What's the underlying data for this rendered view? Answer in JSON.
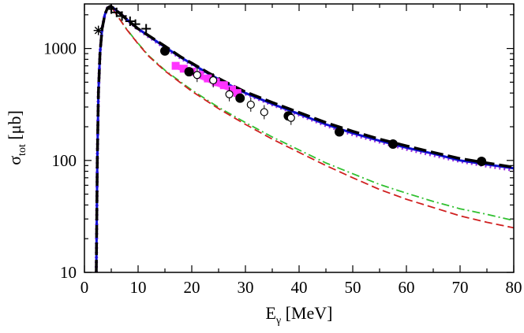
{
  "chart_data": {
    "type": "line",
    "title": "",
    "xlabel": {
      "main": "E",
      "sub": "γ",
      "unit": " [MeV]"
    },
    "ylabel": {
      "main": "σ",
      "sub": "tot",
      "unit": " [μb]"
    },
    "xlim": [
      0,
      80
    ],
    "ylim": [
      10,
      2500
    ],
    "yscale": "log",
    "grid": false,
    "legend": "none",
    "x_ticks": [
      {
        "value": 0,
        "label": "0"
      },
      {
        "value": 10,
        "label": "10"
      },
      {
        "value": 20,
        "label": "20"
      },
      {
        "value": 30,
        "label": "30"
      },
      {
        "value": 40,
        "label": "40"
      },
      {
        "value": 50,
        "label": "50"
      },
      {
        "value": 60,
        "label": "60"
      },
      {
        "value": 70,
        "label": "70"
      },
      {
        "value": 80,
        "label": "80"
      }
    ],
    "y_ticks": [
      {
        "value": 10,
        "label": "10"
      },
      {
        "value": 100,
        "label": "100"
      },
      {
        "value": 1000,
        "label": "1000"
      }
    ],
    "series": [
      {
        "name": "blue-solid-curve",
        "color": "#1010d0",
        "style": "solid",
        "points": [
          [
            2.2,
            10
          ],
          [
            2.4,
            100
          ],
          [
            2.6,
            400
          ],
          [
            2.9,
            900
          ],
          [
            3.3,
            1500
          ],
          [
            3.8,
            2000
          ],
          [
            4.3,
            2300
          ],
          [
            4.8,
            2380
          ],
          [
            5.3,
            2320
          ],
          [
            6,
            2180
          ],
          [
            7,
            1980
          ],
          [
            8,
            1800
          ],
          [
            10,
            1500
          ],
          [
            12,
            1290
          ],
          [
            15,
            1030
          ],
          [
            18,
            830
          ],
          [
            20,
            730
          ],
          [
            23,
            600
          ],
          [
            26,
            500
          ],
          [
            30,
            400
          ],
          [
            35,
            320
          ],
          [
            40,
            260
          ],
          [
            45,
            210
          ],
          [
            50,
            175
          ],
          [
            55,
            150
          ],
          [
            60,
            130
          ],
          [
            65,
            115
          ],
          [
            70,
            100
          ],
          [
            75,
            92
          ],
          [
            80,
            85
          ]
        ]
      },
      {
        "name": "black-dashed-curve",
        "color": "#000000",
        "style": "dashed",
        "points": [
          [
            2.2,
            10
          ],
          [
            2.4,
            100
          ],
          [
            2.6,
            400
          ],
          [
            2.9,
            900
          ],
          [
            3.3,
            1500
          ],
          [
            3.8,
            2000
          ],
          [
            4.3,
            2300
          ],
          [
            4.8,
            2380
          ],
          [
            5.3,
            2320
          ],
          [
            6,
            2180
          ],
          [
            7,
            1980
          ],
          [
            8,
            1800
          ],
          [
            10,
            1500
          ],
          [
            12,
            1300
          ],
          [
            15,
            1050
          ],
          [
            18,
            840
          ],
          [
            20,
            740
          ],
          [
            23,
            610
          ],
          [
            26,
            510
          ],
          [
            30,
            410
          ],
          [
            35,
            330
          ],
          [
            40,
            268
          ],
          [
            45,
            218
          ],
          [
            50,
            182
          ],
          [
            55,
            155
          ],
          [
            60,
            135
          ],
          [
            65,
            118
          ],
          [
            70,
            104
          ],
          [
            75,
            95
          ],
          [
            80,
            87
          ]
        ]
      },
      {
        "name": "purple-dotted-curve",
        "color": "#9a30e0",
        "style": "dotted",
        "points": [
          [
            2.2,
            10
          ],
          [
            2.4,
            100
          ],
          [
            2.6,
            400
          ],
          [
            2.9,
            900
          ],
          [
            3.3,
            1500
          ],
          [
            3.8,
            2000
          ],
          [
            4.3,
            2300
          ],
          [
            4.8,
            2380
          ],
          [
            5.3,
            2320
          ],
          [
            6,
            2180
          ],
          [
            7,
            1980
          ],
          [
            8,
            1800
          ],
          [
            10,
            1480
          ],
          [
            12,
            1270
          ],
          [
            15,
            1010
          ],
          [
            18,
            815
          ],
          [
            20,
            718
          ],
          [
            23,
            590
          ],
          [
            26,
            490
          ],
          [
            30,
            393
          ],
          [
            35,
            314
          ],
          [
            40,
            255
          ],
          [
            45,
            205
          ],
          [
            50,
            170
          ],
          [
            55,
            146
          ],
          [
            60,
            126
          ],
          [
            65,
            111
          ],
          [
            70,
            98
          ],
          [
            75,
            89
          ],
          [
            80,
            82
          ]
        ]
      },
      {
        "name": "red-dashed-curve",
        "color": "#d02020",
        "style": "longdash",
        "points": [
          [
            2.2,
            10
          ],
          [
            2.4,
            100
          ],
          [
            2.6,
            400
          ],
          [
            2.9,
            900
          ],
          [
            3.3,
            1500
          ],
          [
            3.8,
            2000
          ],
          [
            4.3,
            2300
          ],
          [
            4.8,
            2380
          ],
          [
            5.3,
            2250
          ],
          [
            6,
            2000
          ],
          [
            7,
            1700
          ],
          [
            8,
            1450
          ],
          [
            10,
            1100
          ],
          [
            12,
            850
          ],
          [
            15,
            630
          ],
          [
            18,
            490
          ],
          [
            20,
            415
          ],
          [
            25,
            290
          ],
          [
            30,
            210
          ],
          [
            35,
            155
          ],
          [
            40,
            118
          ],
          [
            45,
            90
          ],
          [
            50,
            70
          ],
          [
            55,
            55
          ],
          [
            60,
            45
          ],
          [
            65,
            38
          ],
          [
            70,
            32
          ],
          [
            75,
            28
          ],
          [
            80,
            25
          ]
        ]
      },
      {
        "name": "green-dashdot-curve",
        "color": "#30c030",
        "style": "dashdot",
        "points": [
          [
            2.2,
            10
          ],
          [
            2.4,
            100
          ],
          [
            2.6,
            400
          ],
          [
            2.9,
            900
          ],
          [
            3.3,
            1500
          ],
          [
            3.8,
            2000
          ],
          [
            4.3,
            2300
          ],
          [
            4.8,
            2380
          ],
          [
            5.3,
            2260
          ],
          [
            6,
            2010
          ],
          [
            7,
            1710
          ],
          [
            8,
            1460
          ],
          [
            10,
            1110
          ],
          [
            12,
            860
          ],
          [
            15,
            640
          ],
          [
            18,
            500
          ],
          [
            20,
            425
          ],
          [
            25,
            298
          ],
          [
            30,
            218
          ],
          [
            35,
            162
          ],
          [
            40,
            124
          ],
          [
            45,
            95
          ],
          [
            50,
            76
          ],
          [
            55,
            61
          ],
          [
            60,
            51
          ],
          [
            65,
            43
          ],
          [
            70,
            37
          ],
          [
            75,
            33
          ],
          [
            80,
            29
          ]
        ]
      },
      {
        "name": "magenta-band",
        "color": "#ff33ff",
        "style": "band",
        "points": [
          [
            17,
            700
          ],
          [
            19,
            640
          ],
          [
            21,
            580
          ],
          [
            23,
            530
          ],
          [
            25,
            480
          ],
          [
            27,
            440
          ],
          [
            28.5,
            410
          ]
        ]
      }
    ],
    "markers": {
      "filled_circles": [
        [
          15,
          950
        ],
        [
          19.5,
          620
        ],
        [
          29,
          360
        ],
        [
          38,
          250
        ],
        [
          47.5,
          180
        ],
        [
          57.5,
          140
        ],
        [
          74,
          98
        ]
      ],
      "open_circles": [
        [
          21,
          580
        ],
        [
          24,
          520
        ],
        [
          27,
          390
        ],
        [
          31,
          315
        ],
        [
          33.5,
          270
        ],
        [
          38.5,
          240
        ]
      ],
      "plus": [
        [
          5,
          2250
        ],
        [
          6,
          2100
        ],
        [
          7,
          1950
        ],
        [
          8.5,
          1750
        ],
        [
          9.5,
          1650
        ],
        [
          11.5,
          1500
        ]
      ],
      "asterisk": [
        [
          2.6,
          1450
        ]
      ],
      "magenta_squares": [
        [
          17,
          700
        ],
        [
          18.5,
          660
        ],
        [
          20,
          620
        ],
        [
          21.5,
          580
        ],
        [
          23,
          540
        ],
        [
          24.5,
          500
        ],
        [
          26,
          470
        ],
        [
          27.5,
          430
        ],
        [
          28.5,
          400
        ]
      ]
    }
  }
}
